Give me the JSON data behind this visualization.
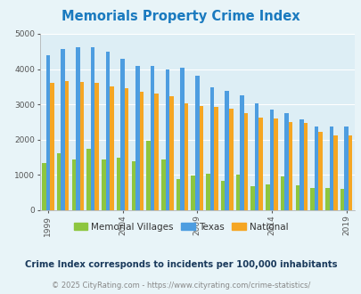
{
  "title": "Memorials Property Crime Index",
  "title_color": "#1a7abf",
  "background_color": "#e8f4f8",
  "plot_bg_color": "#ddeef5",
  "years": [
    1999,
    2000,
    2001,
    2002,
    2003,
    2004,
    2005,
    2006,
    2007,
    2008,
    2009,
    2010,
    2011,
    2012,
    2013,
    2014,
    2015,
    2016,
    2017,
    2018,
    2019
  ],
  "memorial_villages": [
    1330,
    1620,
    1440,
    1750,
    1440,
    1480,
    1400,
    1970,
    1440,
    880,
    980,
    1040,
    820,
    1000,
    680,
    740,
    960,
    700,
    620,
    630,
    600
  ],
  "texas": [
    4400,
    4580,
    4620,
    4620,
    4500,
    4300,
    4100,
    4100,
    4000,
    4030,
    3800,
    3480,
    3380,
    3250,
    3020,
    2840,
    2750,
    2580,
    2380,
    2380,
    2380
  ],
  "national": [
    3600,
    3660,
    3630,
    3600,
    3500,
    3450,
    3350,
    3300,
    3220,
    3020,
    2950,
    2920,
    2880,
    2750,
    2620,
    2600,
    2500,
    2470,
    2220,
    2120,
    2120
  ],
  "memorial_color": "#8dc63f",
  "texas_color": "#4d9de0",
  "national_color": "#f5a623",
  "ylim": [
    0,
    5000
  ],
  "yticks": [
    0,
    1000,
    2000,
    3000,
    4000,
    5000
  ],
  "xlabel_years": [
    1999,
    2004,
    2009,
    2014,
    2019
  ],
  "subtitle": "Crime Index corresponds to incidents per 100,000 inhabitants",
  "copyright": "© 2025 CityRating.com - https://www.cityrating.com/crime-statistics/",
  "legend_labels": [
    "Memorial Villages",
    "Texas",
    "National"
  ]
}
